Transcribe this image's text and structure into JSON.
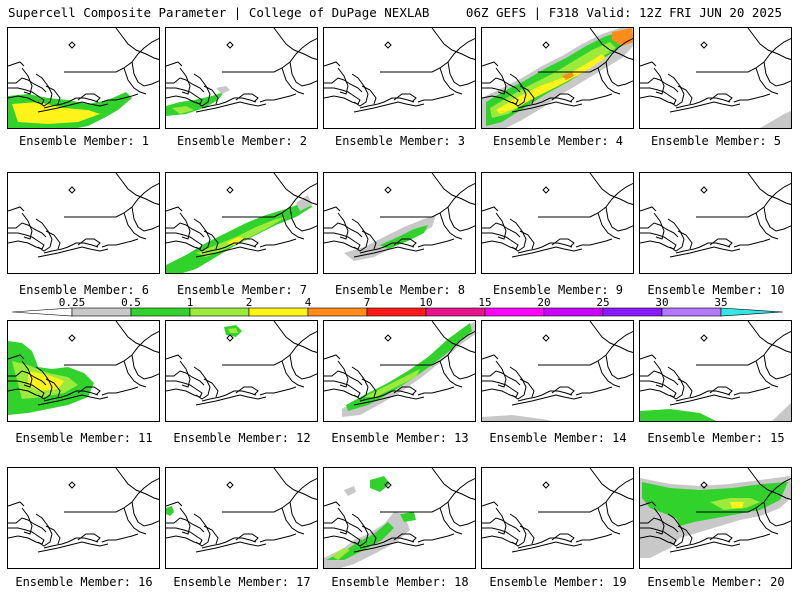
{
  "header": {
    "left": "Supercell Composite Parameter | College of DuPage NEXLAB",
    "right": "06Z GEFS | F318 Valid: 12Z FRI JUN 20 2025"
  },
  "legend": {
    "ticks": [
      "0.25",
      "0.5",
      "1",
      "2",
      "4",
      "7",
      "10",
      "15",
      "20",
      "25",
      "30",
      "35"
    ],
    "colors": [
      "#ffffff",
      "#c8c8c8",
      "#32d22d",
      "#9bea3c",
      "#fff31a",
      "#ff8c1a",
      "#ff1a1a",
      "#e6148c",
      "#ff00ff",
      "#c800ff",
      "#8c1aff",
      "#b478ff",
      "#33e6e6"
    ]
  },
  "field_colors": {
    "gray": "#c8c8c8",
    "green": "#32d22d",
    "ltgreen": "#9bea3c",
    "yellow": "#fff31a",
    "orange": "#ff8c1a"
  },
  "members": [
    {
      "label": "Ensemble Member: 1"
    },
    {
      "label": "Ensemble Member: 2"
    },
    {
      "label": "Ensemble Member: 3"
    },
    {
      "label": "Ensemble Member: 4"
    },
    {
      "label": "Ensemble Member: 5"
    },
    {
      "label": "Ensemble Member: 6"
    },
    {
      "label": "Ensemble Member: 7"
    },
    {
      "label": "Ensemble Member: 8"
    },
    {
      "label": "Ensemble Member: 9"
    },
    {
      "label": "Ensemble Member: 10"
    },
    {
      "label": "Ensemble Member: 11"
    },
    {
      "label": "Ensemble Member: 12"
    },
    {
      "label": "Ensemble Member: 13"
    },
    {
      "label": "Ensemble Member: 14"
    },
    {
      "label": "Ensemble Member: 15"
    },
    {
      "label": "Ensemble Member: 16"
    },
    {
      "label": "Ensemble Member: 17"
    },
    {
      "label": "Ensemble Member: 18"
    },
    {
      "label": "Ensemble Member: 19"
    },
    {
      "label": "Ensemble Member: 20"
    }
  ]
}
